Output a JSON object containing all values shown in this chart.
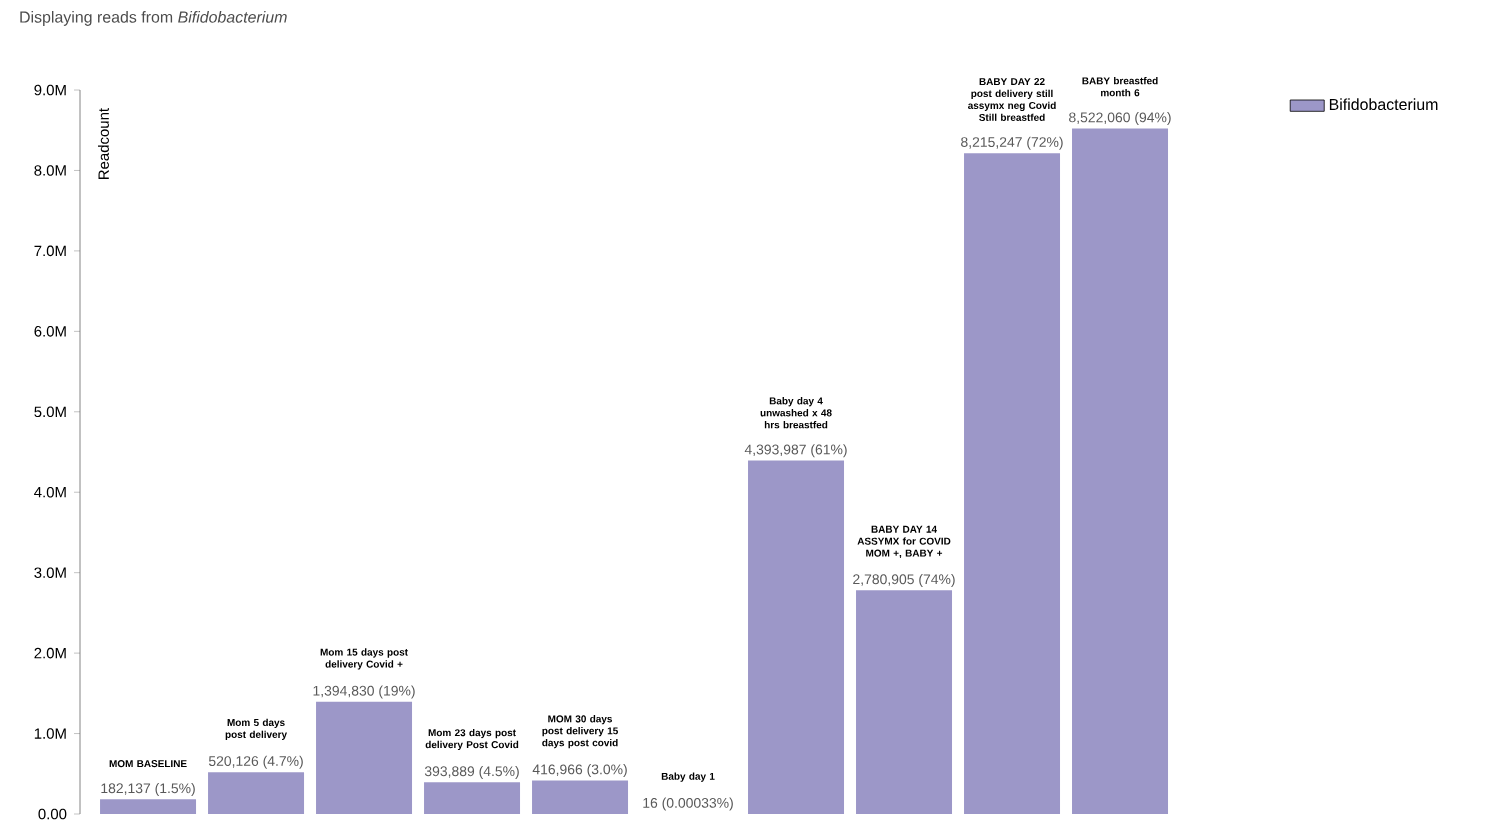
{
  "chart_data": {
    "type": "bar",
    "title": "Displaying reads from *Bifidobacterium*",
    "ylabel": "Readcount",
    "categories": [
      "MOM BASELINE",
      "Mom 5 days post delivery",
      "Mom 15 days post delivery Covid +",
      "Mom 23 days post delivery Post Covid",
      "MOM 30 days post delivery 15 days post covid",
      "Baby day 1",
      "Baby day 4 unwashed x 48 hrs breastfed",
      "BABY DAY 14 ASSYMX for COVID MOM +, BABY +",
      "BABY DAY 22 post delivery still assymx neg Covid Still breastfed",
      "BABY breastfed month 6"
    ],
    "series": [
      {
        "name": "Bifidobacterium",
        "color": "#9c97c8",
        "values": [
          182137,
          520126,
          1394830,
          393889,
          416966,
          16,
          4393987,
          2780905,
          8215247,
          8522060
        ],
        "value_labels": [
          "182,137 (1.5%)",
          "520,126 (4.7%)",
          "1,394,830 (19%)",
          "393,889 (4.5%)",
          "416,966 (3.0%)",
          "16 (0.00033%)",
          "4,393,987 (61%)",
          "2,780,905 (74%)",
          "8,215,247 (72%)",
          "8,522,060 (94%)"
        ]
      }
    ],
    "ylim": [
      0,
      9000000
    ],
    "yticks": [
      {
        "value": 0,
        "label": "0.00"
      },
      {
        "value": 1000000,
        "label": "1.0M"
      },
      {
        "value": 2000000,
        "label": "2.0M"
      },
      {
        "value": 3000000,
        "label": "3.0M"
      },
      {
        "value": 4000000,
        "label": "4.0M"
      },
      {
        "value": 5000000,
        "label": "5.0M"
      },
      {
        "value": 6000000,
        "label": "6.0M"
      },
      {
        "value": 7000000,
        "label": "7.0M"
      },
      {
        "value": 8000000,
        "label": "8.0M"
      },
      {
        "value": 9000000,
        "label": "9.0M"
      }
    ],
    "grid": false,
    "legend": "top right"
  }
}
